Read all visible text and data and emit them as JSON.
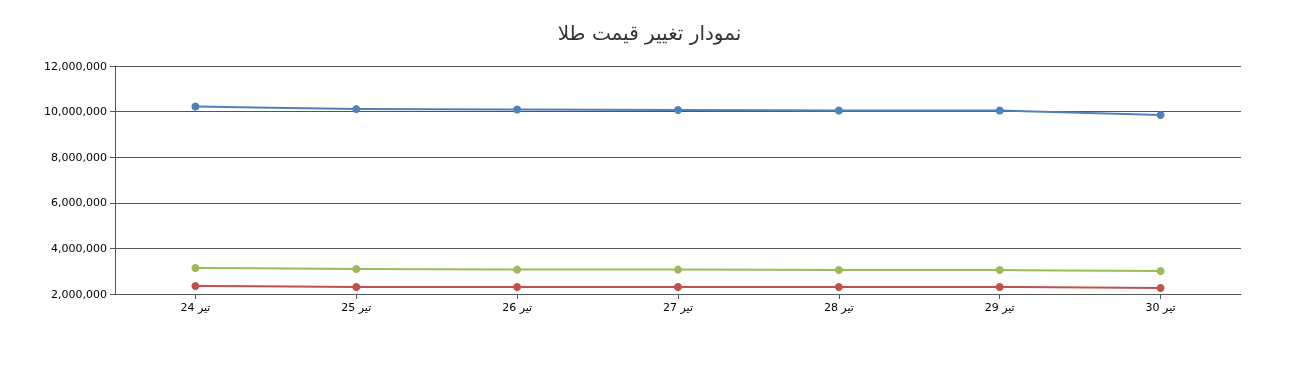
{
  "chart_data": {
    "type": "line",
    "title": "نمودار تغییر قیمت طلا",
    "categories": [
      "24 تیر",
      "25 تیر",
      "26 تیر",
      "27 تیر",
      "28 تیر",
      "29 تیر",
      "30 تیر"
    ],
    "series": [
      {
        "color": "#4f81bc",
        "values": [
          10220000,
          10110000,
          10090000,
          10070000,
          10050000,
          10050000,
          9850000
        ]
      },
      {
        "color": "#9bbb58",
        "values": [
          3140000,
          3100000,
          3070000,
          3070000,
          3050000,
          3050000,
          3010000
        ]
      },
      {
        "color": "#c0504e",
        "values": [
          2350000,
          2310000,
          2310000,
          2310000,
          2310000,
          2310000,
          2260000
        ]
      }
    ],
    "ylim": [
      2000000,
      12000000
    ],
    "yticks": [
      {
        "value": 2000000,
        "label": "2,000,000"
      },
      {
        "value": 4000000,
        "label": "4,000,000"
      },
      {
        "value": 6000000,
        "label": "6,000,000"
      },
      {
        "value": 8000000,
        "label": "8,000,000"
      },
      {
        "value": 10000000,
        "label": "10,000,000"
      },
      {
        "value": 12000000,
        "label": "12,000,000"
      }
    ],
    "grid": "y",
    "marker": "circle",
    "line_style": "solid"
  }
}
